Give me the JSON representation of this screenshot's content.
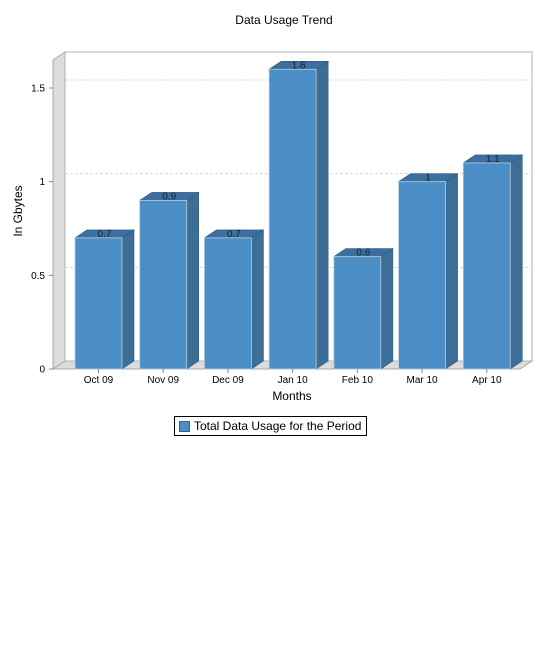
{
  "chart_data": {
    "type": "bar",
    "title": "Data Usage Trend",
    "xlabel": "Months",
    "ylabel": "In Gbytes",
    "categories": [
      "Oct 09",
      "Nov 09",
      "Dec 09",
      "Jan 10",
      "Feb 10",
      "Mar 10",
      "Apr 10"
    ],
    "series": [
      {
        "name": "Total Data Usage for the Period",
        "values": [
          0.7,
          0.9,
          0.7,
          1.6,
          0.6,
          1,
          1.1
        ],
        "value_labels": [
          "0.7",
          "0.9",
          "0.7",
          "1.6",
          "0.6",
          "1",
          "1.1"
        ],
        "color": "#4c8fc6"
      }
    ],
    "yticks": [
      "0",
      "0.5",
      "1",
      "1.5"
    ],
    "ytick_values": [
      0,
      0.5,
      1,
      1.5
    ],
    "ylim": [
      0,
      1.6
    ],
    "grid": true,
    "three_d": true,
    "legend_position": "bottom"
  }
}
